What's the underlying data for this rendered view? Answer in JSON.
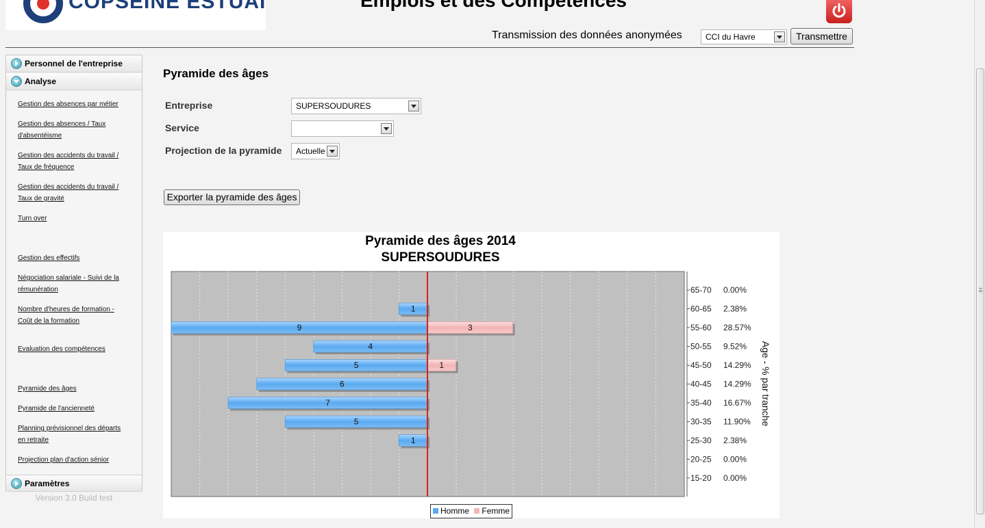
{
  "header": {
    "logo_text": "COPSEINE ESTUAIRE",
    "app_title": "Emplois et des Compétences",
    "transmit_label": "Transmission des données anonymées",
    "cci_select": "CCI du Havre",
    "transmit_button": "Transmettre"
  },
  "sidebar": {
    "sections": [
      {
        "label": "Personnel de l'entreprise",
        "state": "collapsed"
      },
      {
        "label": "Analyse",
        "state": "expanded"
      },
      {
        "label": "Paramètres",
        "state": "collapsed"
      }
    ],
    "links": [
      {
        "lines": [
          "Gestion des absences par métier"
        ]
      },
      {
        "lines": [
          "Gestion des absences / Taux",
          "d'absentéisme"
        ]
      },
      {
        "lines": [
          "Gestion des accidents du travail /",
          "Taux de fréquence"
        ]
      },
      {
        "lines": [
          "Gestion des accidents du travail /",
          "Taux de gravité"
        ]
      },
      {
        "lines": [
          "Turn over"
        ]
      },
      {
        "lines": [
          "Gestion des effectifs"
        ]
      },
      {
        "lines": [
          "Négociation salariale - Suivi de la",
          "rémunération"
        ]
      },
      {
        "lines": [
          "Nombre d'heures de formation -",
          "Coût de la formation"
        ]
      },
      {
        "lines": [
          "Evaluation des compétences"
        ]
      },
      {
        "lines": [
          "Pyramide des âges"
        ]
      },
      {
        "lines": [
          "Pyramide de l'ancienneté"
        ]
      },
      {
        "lines": [
          "Planning prévisionnel des départs",
          "en retraite"
        ]
      },
      {
        "lines": [
          "Projection plan d'action sénior"
        ]
      }
    ],
    "version": "Version 3.0 Build test"
  },
  "main": {
    "title": "Pyramide des âges",
    "fields": {
      "entreprise": {
        "label": "Entreprise",
        "value": "SUPERSOUDURES"
      },
      "service": {
        "label": "Service",
        "value": ""
      },
      "projection": {
        "label": "Projection de la pyramide",
        "value": "Actuelle"
      }
    },
    "export_button": "Exporter la pyramide des âges"
  },
  "chart_data": {
    "type": "bar",
    "orientation": "horizontal-pyramid",
    "title_line1": "Pyramide des âges 2014",
    "title_line2": "SUPERSOUDURES",
    "ylabel": "Age - % par tranche",
    "categories": [
      "65-70",
      "60-65",
      "55-60",
      "50-55",
      "45-50",
      "40-45",
      "35-40",
      "30-35",
      "25-30",
      "20-25",
      "15-20"
    ],
    "percentages": [
      "0.00%",
      "2.38%",
      "28.57%",
      "9.52%",
      "14.29%",
      "14.29%",
      "16.67%",
      "11.90%",
      "2.38%",
      "0.00%",
      "0.00%"
    ],
    "series": [
      {
        "name": "Homme",
        "values": [
          0,
          1,
          9,
          4,
          5,
          6,
          7,
          5,
          1,
          0,
          0
        ],
        "color": "#5aa9f0"
      },
      {
        "name": "Femme",
        "values": [
          0,
          0,
          3,
          0,
          1,
          0,
          0,
          0,
          0,
          0,
          0
        ],
        "color": "#f2b5b5"
      }
    ],
    "xlim": [
      -9,
      9
    ],
    "grid": true,
    "center_line_color": "#d42020",
    "plot_background": "#c0c0c0",
    "legend_position": "bottom-center"
  }
}
